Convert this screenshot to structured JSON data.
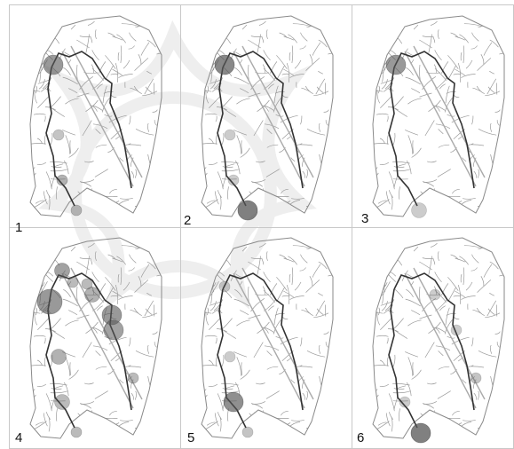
{
  "figure": {
    "panels": [
      {
        "label": "1",
        "circles": [
          {
            "site": "north-west",
            "size": "large",
            "opacity": 0.6
          },
          {
            "site": "west-mid",
            "size": "small",
            "opacity": 0.35
          },
          {
            "site": "south-west",
            "size": "small",
            "opacity": 0.45
          },
          {
            "site": "south",
            "size": "small",
            "opacity": 0.4
          }
        ]
      },
      {
        "label": "2",
        "circles": [
          {
            "site": "north-west",
            "size": "large",
            "opacity": 0.7
          },
          {
            "site": "west-mid",
            "size": "small",
            "opacity": 0.3
          },
          {
            "site": "south-west",
            "size": "small",
            "opacity": 0.3
          },
          {
            "site": "south",
            "size": "large",
            "opacity": 0.75
          }
        ]
      },
      {
        "label": "3",
        "circles": [
          {
            "site": "north-west",
            "size": "large",
            "opacity": 0.6
          },
          {
            "site": "south",
            "size": "medium",
            "opacity": 0.3
          }
        ]
      },
      {
        "label": "4",
        "circles": [
          {
            "site": "north",
            "size": "medium",
            "opacity": 0.55
          },
          {
            "site": "north-mid",
            "size": "small",
            "opacity": 0.4
          },
          {
            "site": "west-upper",
            "size": "xlarge",
            "opacity": 0.6
          },
          {
            "site": "north-east-1",
            "size": "small",
            "opacity": 0.4
          },
          {
            "site": "north-east-2",
            "size": "medium",
            "opacity": 0.45
          },
          {
            "site": "east-mid",
            "size": "large",
            "opacity": 0.6
          },
          {
            "site": "east-lower",
            "size": "large",
            "opacity": 0.55
          },
          {
            "site": "west-mid",
            "size": "medium",
            "opacity": 0.45
          },
          {
            "site": "south-west",
            "size": "medium",
            "opacity": 0.4
          },
          {
            "site": "south-east",
            "size": "small",
            "opacity": 0.4
          },
          {
            "site": "south",
            "size": "small",
            "opacity": 0.4
          }
        ]
      },
      {
        "label": "5",
        "circles": [
          {
            "site": "north-west",
            "size": "small",
            "opacity": 0.3
          },
          {
            "site": "west-mid",
            "size": "small",
            "opacity": 0.3
          },
          {
            "site": "south-west",
            "size": "large",
            "opacity": 0.65
          },
          {
            "site": "south",
            "size": "small",
            "opacity": 0.35
          }
        ]
      },
      {
        "label": "6",
        "circles": [
          {
            "site": "north-east-2",
            "size": "small",
            "opacity": 0.3
          },
          {
            "site": "east-lower",
            "size": "small",
            "opacity": 0.3
          },
          {
            "site": "south-east",
            "size": "small",
            "opacity": 0.35
          },
          {
            "site": "south-west",
            "size": "small",
            "opacity": 0.3
          },
          {
            "site": "south-far",
            "size": "large",
            "opacity": 0.75
          }
        ]
      }
    ],
    "colors": {
      "street": "#9a9a9a",
      "main_route": "#333333",
      "circle_fill": "#555555",
      "panel_border": "#c8c8c8",
      "watermark": "#bdbdbd"
    }
  }
}
